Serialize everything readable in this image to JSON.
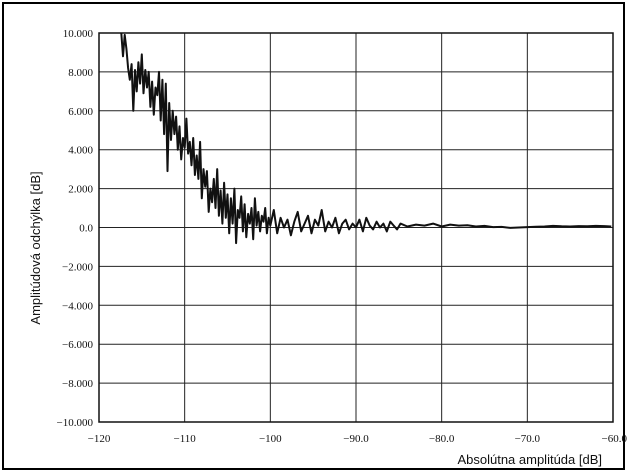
{
  "chart_data": {
    "type": "line",
    "title": "",
    "xlabel": "Absolútna amplitúda [dB]",
    "ylabel": "Amplitúdová odchýlka [dB]",
    "xlim": [
      -120,
      -60
    ],
    "ylim": [
      -10,
      10
    ],
    "grid": true,
    "legend": "none",
    "line_color": "#111111",
    "x_tick_labels": [
      {
        "value": -120,
        "label": "−120"
      },
      {
        "value": -110,
        "label": "−110"
      },
      {
        "value": -100,
        "label": "−100"
      },
      {
        "value": -90,
        "label": "−90.0"
      },
      {
        "value": -80,
        "label": "−80.0"
      },
      {
        "value": -70,
        "label": "−70.0"
      },
      {
        "value": -60,
        "label": "−60.0"
      }
    ],
    "y_tick_labels": [
      {
        "value": 10,
        "label": "10.000"
      },
      {
        "value": 8,
        "label": "8.000"
      },
      {
        "value": 6,
        "label": "6.000"
      },
      {
        "value": 4,
        "label": "4.000"
      },
      {
        "value": 2,
        "label": "2.000"
      },
      {
        "value": 0,
        "label": "0.0"
      },
      {
        "value": -2,
        "label": "−2.000"
      },
      {
        "value": -4,
        "label": "−4.000"
      },
      {
        "value": -6,
        "label": "−6.000"
      },
      {
        "value": -8,
        "label": "−8.000"
      },
      {
        "value": -10,
        "label": "−10.000"
      }
    ],
    "series": [
      {
        "x": [
          -117.4,
          -117.2,
          -117.0,
          -116.8,
          -116.6,
          -116.4,
          -116.2,
          -116.0,
          -115.8,
          -115.6,
          -115.4,
          -115.2,
          -115.0,
          -114.8,
          -114.6,
          -114.4,
          -114.2,
          -114.0,
          -113.8,
          -113.6,
          -113.4,
          -113.2,
          -113.0,
          -112.8,
          -112.6,
          -112.4,
          -112.2,
          -112.0,
          -111.8,
          -111.6,
          -111.4,
          -111.2,
          -111.0,
          -110.8,
          -110.6,
          -110.4,
          -110.2,
          -110.0,
          -109.8,
          -109.6,
          -109.4,
          -109.2,
          -109.0,
          -108.8,
          -108.6,
          -108.4,
          -108.2,
          -108.0,
          -107.8,
          -107.6,
          -107.4,
          -107.2,
          -107.0,
          -106.8,
          -106.6,
          -106.4,
          -106.2,
          -106.0,
          -105.8,
          -105.6,
          -105.4,
          -105.2,
          -105.0,
          -104.8,
          -104.6,
          -104.4,
          -104.2,
          -104.0,
          -103.8,
          -103.6,
          -103.4,
          -103.2,
          -103.0,
          -102.8,
          -102.6,
          -102.4,
          -102.2,
          -102.0,
          -101.8,
          -101.6,
          -101.4,
          -101.2,
          -101.0,
          -100.8,
          -100.6,
          -100.4,
          -100.2,
          -100.0,
          -99.6,
          -99.2,
          -98.8,
          -98.4,
          -98.0,
          -97.6,
          -97.2,
          -96.8,
          -96.4,
          -96.0,
          -95.6,
          -95.2,
          -94.8,
          -94.4,
          -94.0,
          -93.6,
          -93.2,
          -92.8,
          -92.4,
          -92.0,
          -91.6,
          -91.2,
          -90.8,
          -90.4,
          -90.0,
          -89.6,
          -89.2,
          -88.8,
          -88.4,
          -88.0,
          -87.6,
          -87.2,
          -86.8,
          -86.4,
          -86.0,
          -85.6,
          -85.2,
          -84.8,
          -84.0,
          -83.0,
          -82.0,
          -81.0,
          -80.0,
          -79.0,
          -78.0,
          -77.0,
          -76.0,
          -75.0,
          -74.0,
          -73.0,
          -72.0,
          -71.0,
          -70.0,
          -69.0,
          -68.0,
          -67.0,
          -66.0,
          -65.0,
          -64.0,
          -63.0,
          -62.0,
          -61.0,
          -60.2
        ],
        "y": [
          10.0,
          8.8,
          9.9,
          9.2,
          8.2,
          7.6,
          8.4,
          6.0,
          8.1,
          7.0,
          8.5,
          7.4,
          8.9,
          6.9,
          8.1,
          7.2,
          8.0,
          6.2,
          7.5,
          5.8,
          7.2,
          6.8,
          8.0,
          5.5,
          7.6,
          4.8,
          7.4,
          2.9,
          6.4,
          4.5,
          6.0,
          4.8,
          5.7,
          4.0,
          5.2,
          3.5,
          4.6,
          4.1,
          5.6,
          3.8,
          4.4,
          3.2,
          4.6,
          2.7,
          3.7,
          2.5,
          4.4,
          1.5,
          3.0,
          2.1,
          2.9,
          0.8,
          2.0,
          1.3,
          2.5,
          1.0,
          3.0,
          0.6,
          1.9,
          0.2,
          2.3,
          0.5,
          1.7,
          -0.3,
          1.5,
          0.2,
          2.0,
          -0.8,
          0.9,
          0.5,
          1.6,
          -0.2,
          1.2,
          -0.5,
          0.7,
          0.2,
          1.0,
          -0.6,
          1.5,
          0.1,
          0.8,
          -0.2,
          0.6,
          0.3,
          1.0,
          -0.3,
          0.5,
          0.1,
          0.9,
          -0.3,
          0.5,
          0.0,
          0.4,
          -0.4,
          0.3,
          0.8,
          -0.2,
          0.2,
          0.6,
          -0.3,
          0.4,
          0.1,
          0.9,
          -0.2,
          0.3,
          0.0,
          0.5,
          -0.3,
          0.2,
          0.4,
          -0.1,
          0.2,
          0.0,
          0.4,
          -0.2,
          0.5,
          0.1,
          -0.1,
          0.3,
          0.0,
          0.2,
          -0.2,
          0.3,
          0.1,
          -0.1,
          0.2,
          0.05,
          0.15,
          0.1,
          0.2,
          0.05,
          0.15,
          0.1,
          0.12,
          0.05,
          0.08,
          0.02,
          0.03,
          -0.02,
          0.0,
          0.02,
          0.04,
          0.05,
          0.08,
          0.06,
          0.05,
          0.07,
          0.06,
          0.08,
          0.07,
          0.05
        ]
      }
    ]
  }
}
